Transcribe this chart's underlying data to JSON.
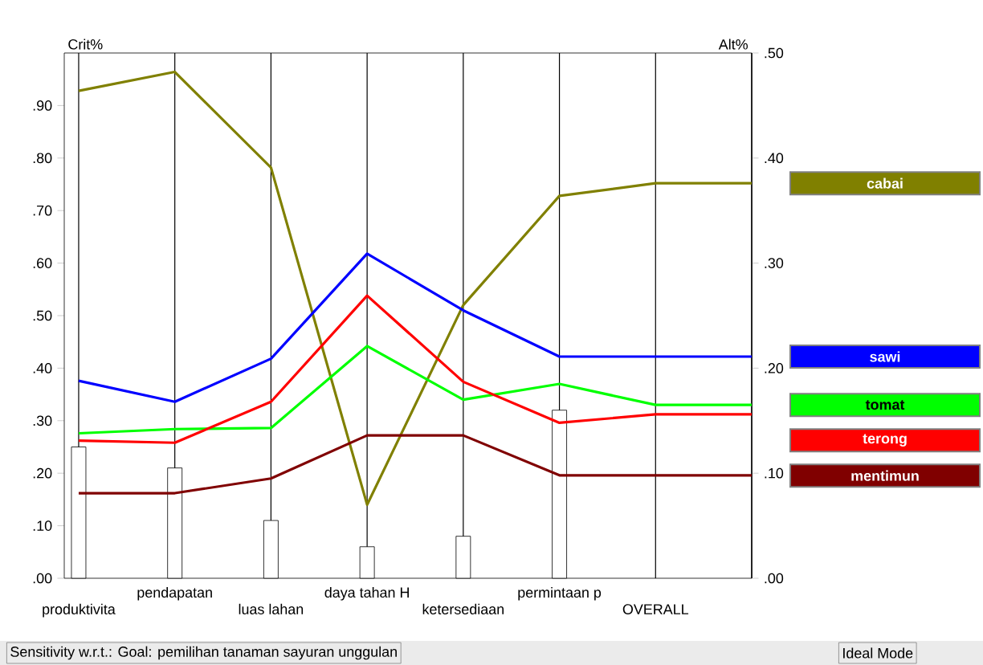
{
  "chart_data": {
    "type": "line",
    "ylabel": "Crit%",
    "y2label": "Alt%",
    "categories": [
      "produktivita",
      "pendapatan",
      "luas lahan",
      "daya tahan H",
      "ketersediaan",
      "permintaan p",
      "OVERALL",
      null
    ],
    "series": [
      {
        "type": "bar",
        "color": "#ffffff",
        "values": [
          0.25,
          0.21,
          0.11,
          0.06,
          0.08,
          0.32,
          null,
          null
        ]
      },
      {
        "name": "cabai",
        "color": "#808000",
        "axis": "y2",
        "values": [
          0.464,
          0.482,
          0.391,
          0.07,
          0.26,
          0.364,
          0.376,
          0.376
        ]
      },
      {
        "name": "sawi",
        "color": "#0000ff",
        "axis": "y2",
        "values": [
          0.188,
          0.168,
          0.209,
          0.309,
          0.255,
          0.211,
          0.211,
          0.211
        ]
      },
      {
        "name": "tomat",
        "color": "#00ff00",
        "axis": "y2",
        "values": [
          0.138,
          0.142,
          0.143,
          0.221,
          0.17,
          0.185,
          0.165,
          0.165
        ]
      },
      {
        "name": "terong",
        "color": "#ff0000",
        "axis": "y2",
        "values": [
          0.131,
          0.129,
          0.168,
          0.269,
          0.187,
          0.148,
          0.156,
          0.156
        ]
      },
      {
        "name": "mentimun",
        "color": "#800000",
        "axis": "y2",
        "values": [
          0.081,
          0.081,
          0.095,
          0.136,
          0.136,
          0.098,
          0.098,
          0.098
        ]
      }
    ],
    "ylim": [
      0,
      1
    ],
    "yticks": [
      {
        "value": 0,
        "label": ".00"
      },
      {
        "value": 0.1,
        "label": ".10"
      },
      {
        "value": 0.2,
        "label": ".20"
      },
      {
        "value": 0.3,
        "label": ".30"
      },
      {
        "value": 0.4,
        "label": ".40"
      },
      {
        "value": 0.5,
        "label": ".50"
      },
      {
        "value": 0.6,
        "label": ".60"
      },
      {
        "value": 0.7,
        "label": ".70"
      },
      {
        "value": 0.8,
        "label": ".80"
      },
      {
        "value": 0.9,
        "label": ".90"
      }
    ],
    "y2lim": [
      0,
      0.5
    ],
    "y2ticks": [
      {
        "value": 0,
        "label": ".00"
      },
      {
        "value": 0.1,
        "label": ".10"
      },
      {
        "value": 0.2,
        "label": ".20"
      },
      {
        "value": 0.3,
        "label": ".30"
      },
      {
        "value": 0.4,
        "label": ".40"
      },
      {
        "value": 0.5,
        "label": ".50"
      }
    ],
    "grid": "x",
    "legend": "right",
    "line_style": "solid",
    "annotations": [
      "Sensitivity w.r.t.: Goal: pemilihan tanaman sayuran unggulan",
      "Ideal Mode"
    ]
  }
}
